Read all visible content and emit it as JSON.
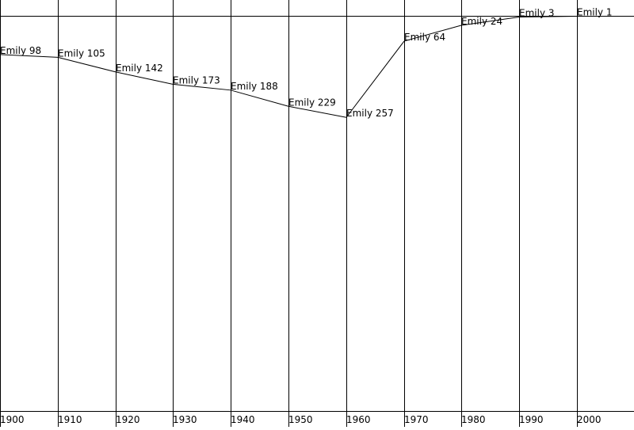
{
  "chart_data": {
    "type": "line",
    "x": [
      1900,
      1910,
      1920,
      1930,
      1940,
      1950,
      1960,
      1970,
      1980,
      1990,
      2000
    ],
    "series": [
      {
        "values": [
          98,
          105,
          142,
          173,
          188,
          229,
          257,
          64,
          24,
          3,
          1
        ]
      }
    ],
    "point_labels": [
      "Emily 98",
      "Emily 105",
      "Emily 142",
      "Emily 173",
      "Emily 188",
      "Emily 229",
      "Emily 257",
      "Emily 64",
      "Emily 24",
      "Emily 3",
      "Emily 1"
    ],
    "x_tick_labels": [
      "1900",
      "1910",
      "1920",
      "1930",
      "1940",
      "1950",
      "1960",
      "1970",
      "1980",
      "1990",
      "2000"
    ],
    "y_reversed": true,
    "ylim": [
      0,
      1000
    ],
    "grid": "vertical",
    "legend": "none",
    "title": "",
    "xlabel": "",
    "ylabel": ""
  }
}
